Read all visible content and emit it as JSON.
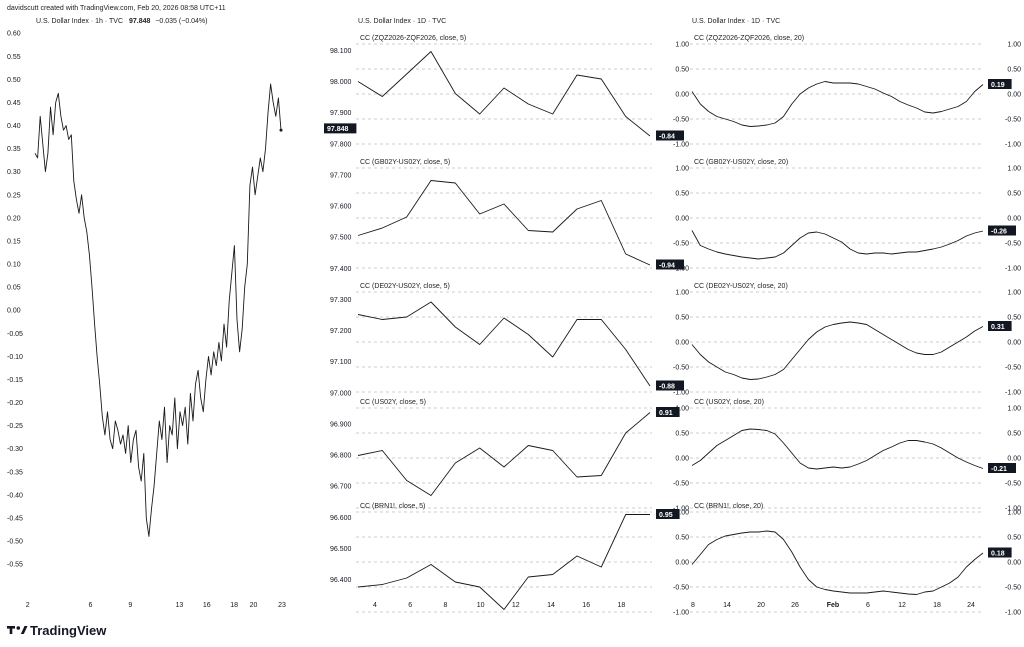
{
  "header": {
    "credit": "davidscutt created with TradingView.com, Feb 20, 2026 08:58 UTC+11",
    "main_symbol": "U.S. Dollar Index · 1h · TVC",
    "main_last": "97.848",
    "main_change": "−0.035 (−0.04%)",
    "mid_symbol": "U.S. Dollar Index · 1D · TVC",
    "right_symbol": "U.S. Dollar Index · 1D · TVC"
  },
  "footer": {
    "logo_text": "TradingView"
  },
  "colors": {
    "line": "#1a1a1a",
    "badge_bg": "#131722",
    "badge_fg": "#ffffff",
    "grid": "#9a9a9a"
  },
  "chart_data": [
    {
      "id": "left",
      "type": "line",
      "title": "U.S. Dollar Index · 1h · TVC",
      "note": "",
      "ylim": [
        -0.58,
        0.62
      ],
      "y_ticks": [
        "0.60",
        "0.55",
        "0.50",
        "0.45",
        "0.40",
        "0.35",
        "0.30",
        "0.25",
        "0.20",
        "0.15",
        "0.10",
        "0.05",
        "0.00",
        "-0.05",
        "-0.10",
        "-0.15",
        "-0.20",
        "-0.25",
        "-0.30",
        "-0.35",
        "-0.40",
        "-0.45",
        "-0.50",
        "-0.55"
      ],
      "x_ticks": [
        "2",
        "6",
        "9",
        "13",
        "16",
        "18",
        "20",
        "23"
      ],
      "x_tick_pos": [
        0.5,
        6,
        9.5,
        13.8,
        16.2,
        18.6,
        20.3,
        22.8
      ],
      "xlim": [
        0,
        23.5
      ],
      "values": [
        0.34,
        0.33,
        0.42,
        0.36,
        0.3,
        0.34,
        0.44,
        0.38,
        0.45,
        0.47,
        0.42,
        0.39,
        0.4,
        0.37,
        0.38,
        0.28,
        0.24,
        0.21,
        0.25,
        0.2,
        0.17,
        0.12,
        0.05,
        -0.03,
        -0.1,
        -0.16,
        -0.23,
        -0.27,
        -0.22,
        -0.28,
        -0.3,
        -0.24,
        -0.26,
        -0.29,
        -0.27,
        -0.31,
        -0.25,
        -0.33,
        -0.28,
        -0.26,
        -0.34,
        -0.37,
        -0.31,
        -0.45,
        -0.49,
        -0.43,
        -0.38,
        -0.31,
        -0.24,
        -0.28,
        -0.21,
        -0.33,
        -0.25,
        -0.27,
        -0.19,
        -0.3,
        -0.22,
        -0.25,
        -0.21,
        -0.29,
        -0.18,
        -0.24,
        -0.16,
        -0.13,
        -0.19,
        -0.22,
        -0.15,
        -0.1,
        -0.14,
        -0.09,
        -0.12,
        -0.07,
        -0.11,
        -0.03,
        -0.08,
        0.02,
        0.08,
        0.14,
        -0.02,
        -0.09,
        -0.04,
        0.05,
        0.1,
        0.27,
        0.31,
        0.25,
        0.29,
        0.33,
        0.3,
        0.35,
        0.43,
        0.49,
        0.45,
        0.42,
        0.46,
        0.39
      ],
      "last_label": ""
    },
    {
      "id": "mid",
      "type": "line",
      "title": "U.S. Dollar Index · 1D · TVC",
      "note": "Price axis on left applies to the stacked correlation panes; each pane has its own −1.00 to 1.00 right axis.",
      "price_ticks": [
        "98.100",
        "98.000",
        "97.900",
        "97.848",
        "97.800",
        "97.700",
        "97.600",
        "97.500",
        "97.400",
        "97.300",
        "97.200",
        "97.100",
        "97.000",
        "96.900",
        "96.800",
        "96.700",
        "96.600",
        "96.500",
        "96.400"
      ],
      "x_ticks": [
        "4",
        "6",
        "8",
        "10",
        "12",
        "14",
        "16",
        "18"
      ],
      "panes": [
        {
          "label": "CC (ZQZ2026-ZQF2026, close, 5)",
          "values": [
            0.25,
            -0.05,
            0.4,
            0.85,
            0.01,
            -0.4,
            0.12,
            -0.2,
            -0.4,
            0.38,
            0.3,
            -0.45,
            -0.84
          ],
          "last_label": "-0.84"
        },
        {
          "label": "CC (GB02Y-US02Y, close, 5)",
          "values": [
            -0.35,
            -0.2,
            0.02,
            0.75,
            0.7,
            0.08,
            0.28,
            -0.25,
            -0.28,
            0.18,
            0.35,
            -0.72,
            -0.94
          ],
          "last_label": "-0.94"
        },
        {
          "label": "CC (DE02Y-US02Y, close, 5)",
          "values": [
            0.55,
            0.45,
            0.5,
            0.8,
            0.3,
            -0.05,
            0.48,
            0.15,
            -0.3,
            0.45,
            0.45,
            -0.15,
            -0.88
          ],
          "last_label": "-0.88"
        },
        {
          "label": "CC (US02Y, close, 5)",
          "values": [
            0.05,
            0.15,
            -0.45,
            -0.75,
            -0.1,
            0.2,
            -0.18,
            0.25,
            0.15,
            -0.38,
            -0.35,
            0.5,
            0.91
          ],
          "last_label": "0.91"
        },
        {
          "label": "CC (BRN1!, close, 5)",
          "values": [
            -0.5,
            -0.45,
            -0.32,
            -0.05,
            -0.4,
            -0.5,
            -0.95,
            -0.3,
            -0.25,
            0.12,
            -0.1,
            0.95,
            0.95
          ],
          "last_label": "0.95"
        }
      ],
      "right_ticks": [
        "1.00",
        "0.50",
        "0.00",
        "-0.50",
        "-1.00"
      ]
    },
    {
      "id": "right",
      "type": "line",
      "title": "U.S. Dollar Index · 1D · TVC",
      "note": "",
      "x_ticks": [
        "8",
        "14",
        "20",
        "26",
        "Feb",
        "6",
        "12",
        "18",
        "24"
      ],
      "panes": [
        {
          "label": "CC (ZQZ2026-ZQF2026, close, 20)",
          "values": [
            0.05,
            -0.2,
            -0.35,
            -0.45,
            -0.5,
            -0.55,
            -0.62,
            -0.65,
            -0.64,
            -0.62,
            -0.58,
            -0.45,
            -0.2,
            0.0,
            0.12,
            0.2,
            0.25,
            0.22,
            0.22,
            0.22,
            0.2,
            0.15,
            0.1,
            0.02,
            -0.05,
            -0.15,
            -0.22,
            -0.28,
            -0.36,
            -0.38,
            -0.35,
            -0.3,
            -0.25,
            -0.15,
            0.05,
            0.19
          ],
          "last_label": "0.19"
        },
        {
          "label": "CC (GB02Y-US02Y, close, 20)",
          "values": [
            -0.25,
            -0.55,
            -0.62,
            -0.68,
            -0.72,
            -0.75,
            -0.78,
            -0.8,
            -0.82,
            -0.8,
            -0.78,
            -0.7,
            -0.55,
            -0.4,
            -0.3,
            -0.28,
            -0.32,
            -0.4,
            -0.48,
            -0.62,
            -0.7,
            -0.72,
            -0.7,
            -0.7,
            -0.72,
            -0.7,
            -0.68,
            -0.68,
            -0.65,
            -0.62,
            -0.58,
            -0.52,
            -0.45,
            -0.36,
            -0.3,
            -0.26
          ],
          "last_label": "-0.26"
        },
        {
          "label": "CC (DE02Y-US02Y, close, 20)",
          "values": [
            -0.05,
            -0.25,
            -0.4,
            -0.5,
            -0.6,
            -0.65,
            -0.72,
            -0.75,
            -0.74,
            -0.7,
            -0.65,
            -0.55,
            -0.35,
            -0.15,
            0.05,
            0.2,
            0.3,
            0.35,
            0.38,
            0.4,
            0.38,
            0.35,
            0.25,
            0.15,
            0.05,
            -0.05,
            -0.15,
            -0.22,
            -0.25,
            -0.25,
            -0.2,
            -0.1,
            0.0,
            0.1,
            0.22,
            0.31
          ],
          "last_label": "0.31"
        },
        {
          "label": "CC (US02Y, close, 20)",
          "values": [
            -0.15,
            -0.05,
            0.1,
            0.25,
            0.35,
            0.45,
            0.55,
            0.58,
            0.57,
            0.55,
            0.48,
            0.3,
            0.1,
            -0.1,
            -0.2,
            -0.22,
            -0.2,
            -0.18,
            -0.2,
            -0.18,
            -0.12,
            -0.05,
            0.05,
            0.15,
            0.22,
            0.3,
            0.35,
            0.35,
            0.32,
            0.28,
            0.2,
            0.1,
            0.0,
            -0.08,
            -0.15,
            -0.21
          ],
          "last_label": "-0.21"
        },
        {
          "label": "CC (BRN1!, close, 20)",
          "values": [
            -0.05,
            0.15,
            0.35,
            0.45,
            0.52,
            0.55,
            0.58,
            0.6,
            0.6,
            0.62,
            0.6,
            0.45,
            0.2,
            -0.1,
            -0.35,
            -0.5,
            -0.55,
            -0.58,
            -0.6,
            -0.62,
            -0.62,
            -0.62,
            -0.6,
            -0.58,
            -0.6,
            -0.62,
            -0.64,
            -0.65,
            -0.6,
            -0.58,
            -0.5,
            -0.42,
            -0.3,
            -0.1,
            0.05,
            0.18
          ],
          "last_label": "0.18"
        }
      ],
      "right_ticks": [
        "1.00",
        "0.50",
        "0.00",
        "-0.50",
        "-1.00"
      ]
    }
  ]
}
